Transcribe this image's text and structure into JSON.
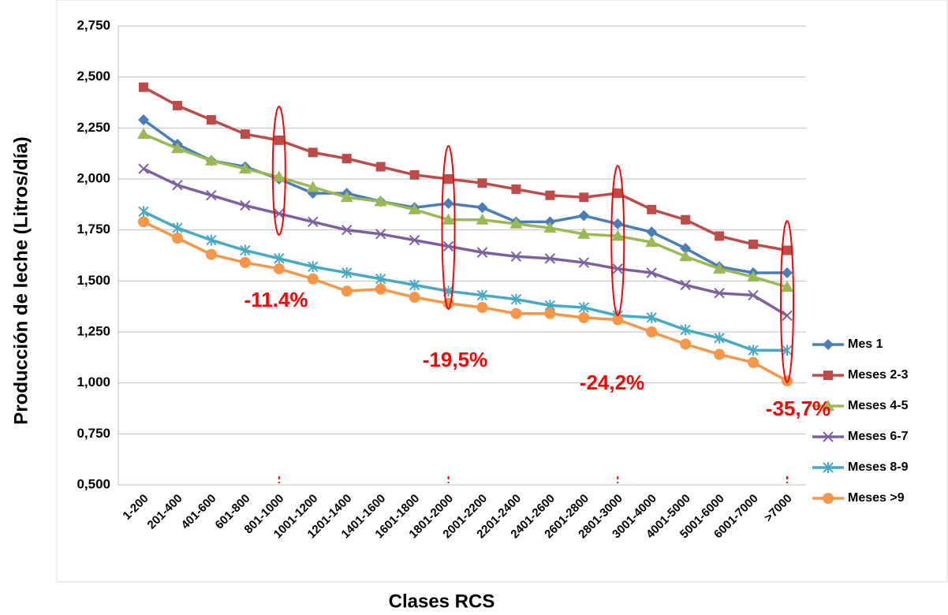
{
  "chart_data": {
    "type": "line",
    "xlabel": "Clases RCS",
    "ylabel": "Producción de leche (Litros/día)",
    "categories": [
      "1-200",
      "201-400",
      "401-600",
      "601-800",
      "801-1000",
      "1001-1200",
      "1201-1400",
      "1401-1600",
      "1601-1800",
      "1801-2000",
      "2001-2200",
      "2201-2400",
      "2401-2600",
      "2601-2800",
      "2801-3000",
      "3001-4000",
      "4001-5000",
      "5001-6000",
      "6001-7000",
      ">7000"
    ],
    "ylim": [
      0.5,
      2.75
    ],
    "yticks": [
      {
        "value": 0.5,
        "label": "0,500"
      },
      {
        "value": 0.75,
        "label": "0,750"
      },
      {
        "value": 1.0,
        "label": "1,000"
      },
      {
        "value": 1.25,
        "label": "1,250"
      },
      {
        "value": 1.5,
        "label": "1,500"
      },
      {
        "value": 1.75,
        "label": "1,750"
      },
      {
        "value": 2.0,
        "label": "2,000"
      },
      {
        "value": 2.25,
        "label": "2,250"
      },
      {
        "value": 2.5,
        "label": "2,500"
      },
      {
        "value": 2.75,
        "label": "2,750"
      }
    ],
    "grid": true,
    "legend": "right",
    "series": [
      {
        "name": "Mes 1",
        "color": "#4a7ebb",
        "marker": "diamond",
        "values": [
          2.29,
          2.17,
          2.09,
          2.06,
          2.0,
          1.93,
          1.93,
          1.89,
          1.86,
          1.88,
          1.86,
          1.79,
          1.79,
          1.82,
          1.78,
          1.74,
          1.66,
          1.57,
          1.54,
          1.54
        ]
      },
      {
        "name": "Meses 2-3",
        "color": "#be4b48",
        "marker": "square",
        "values": [
          2.45,
          2.36,
          2.29,
          2.22,
          2.19,
          2.13,
          2.1,
          2.06,
          2.02,
          2.0,
          1.98,
          1.95,
          1.92,
          1.91,
          1.93,
          1.85,
          1.8,
          1.72,
          1.68,
          1.65
        ]
      },
      {
        "name": "Meses 4-5",
        "color": "#98b954",
        "marker": "triangle",
        "values": [
          2.22,
          2.15,
          2.09,
          2.05,
          2.01,
          1.96,
          1.91,
          1.89,
          1.85,
          1.8,
          1.8,
          1.78,
          1.76,
          1.73,
          1.72,
          1.69,
          1.62,
          1.56,
          1.52,
          1.47
        ]
      },
      {
        "name": "Meses 6-7",
        "color": "#7d60a0",
        "marker": "x",
        "values": [
          2.05,
          1.97,
          1.92,
          1.87,
          1.83,
          1.79,
          1.75,
          1.73,
          1.7,
          1.67,
          1.64,
          1.62,
          1.61,
          1.59,
          1.56,
          1.54,
          1.48,
          1.44,
          1.43,
          1.33
        ]
      },
      {
        "name": "Meses 8-9",
        "color": "#46aac5",
        "marker": "star",
        "values": [
          1.84,
          1.76,
          1.7,
          1.65,
          1.61,
          1.57,
          1.54,
          1.51,
          1.48,
          1.45,
          1.43,
          1.41,
          1.38,
          1.37,
          1.33,
          1.32,
          1.26,
          1.22,
          1.16,
          1.16
        ]
      },
      {
        "name": "Meses >9",
        "color": "#f79646",
        "marker": "circle",
        "values": [
          1.79,
          1.71,
          1.63,
          1.59,
          1.56,
          1.51,
          1.45,
          1.46,
          1.42,
          1.39,
          1.37,
          1.34,
          1.34,
          1.32,
          1.31,
          1.25,
          1.19,
          1.14,
          1.1,
          1.01
        ]
      }
    ],
    "annotations": [
      "-11.4%",
      "-19,5%",
      "-24,2%",
      "-35,7%"
    ]
  }
}
